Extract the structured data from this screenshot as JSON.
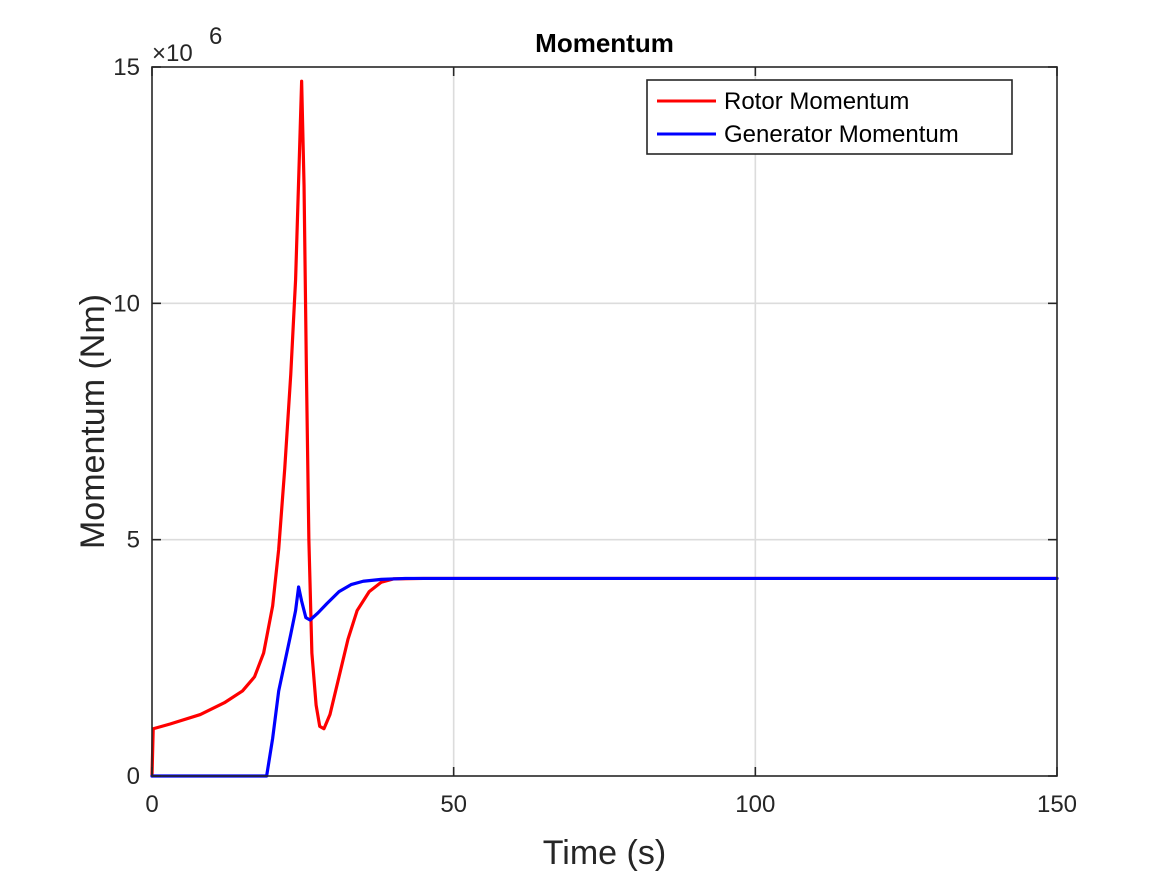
{
  "chart_data": {
    "type": "line",
    "title": "Momentum",
    "xlabel": "Time (s)",
    "ylabel": "Momentum (Nm)",
    "xlim": [
      0,
      150
    ],
    "ylim": [
      0,
      15000000
    ],
    "x_ticks": [
      "0",
      "50",
      "100",
      "150"
    ],
    "y_ticks": [
      "0",
      "5",
      "10",
      "15"
    ],
    "y_multiplier": {
      "base": "×10",
      "exponent": "6"
    },
    "grid": true,
    "legend_position": "top-right",
    "series": [
      {
        "name": "Rotor Momentum",
        "color": "#ff0000",
        "points": [
          [
            0,
            0
          ],
          [
            0.2,
            1000000
          ],
          [
            3,
            1100000
          ],
          [
            8,
            1300000
          ],
          [
            12,
            1550000
          ],
          [
            15,
            1800000
          ],
          [
            17,
            2100000
          ],
          [
            18.5,
            2600000
          ],
          [
            20,
            3600000
          ],
          [
            21,
            4800000
          ],
          [
            22,
            6500000
          ],
          [
            23,
            8500000
          ],
          [
            23.8,
            10500000
          ],
          [
            24.4,
            13000000
          ],
          [
            24.8,
            14700000
          ],
          [
            25.2,
            12500000
          ],
          [
            25.6,
            8500000
          ],
          [
            26,
            5000000
          ],
          [
            26.5,
            2600000
          ],
          [
            27.2,
            1500000
          ],
          [
            27.8,
            1050000
          ],
          [
            28.5,
            1000000
          ],
          [
            29.5,
            1300000
          ],
          [
            31,
            2100000
          ],
          [
            32.5,
            2900000
          ],
          [
            34,
            3500000
          ],
          [
            36,
            3900000
          ],
          [
            38,
            4100000
          ],
          [
            40,
            4170000
          ],
          [
            45,
            4180000
          ],
          [
            60,
            4180000
          ],
          [
            100,
            4180000
          ],
          [
            150,
            4180000
          ]
        ]
      },
      {
        "name": "Generator Momentum",
        "color": "#0000ff",
        "points": [
          [
            0,
            0
          ],
          [
            19,
            0
          ],
          [
            20,
            800000
          ],
          [
            21,
            1800000
          ],
          [
            22,
            2400000
          ],
          [
            23,
            3000000
          ],
          [
            23.8,
            3500000
          ],
          [
            24.3,
            4000000
          ],
          [
            24.8,
            3700000
          ],
          [
            25.5,
            3350000
          ],
          [
            26.2,
            3300000
          ],
          [
            27.5,
            3450000
          ],
          [
            29,
            3650000
          ],
          [
            31,
            3900000
          ],
          [
            33,
            4050000
          ],
          [
            35,
            4120000
          ],
          [
            38,
            4160000
          ],
          [
            42,
            4180000
          ],
          [
            60,
            4180000
          ],
          [
            100,
            4180000
          ],
          [
            150,
            4180000
          ]
        ]
      }
    ]
  }
}
